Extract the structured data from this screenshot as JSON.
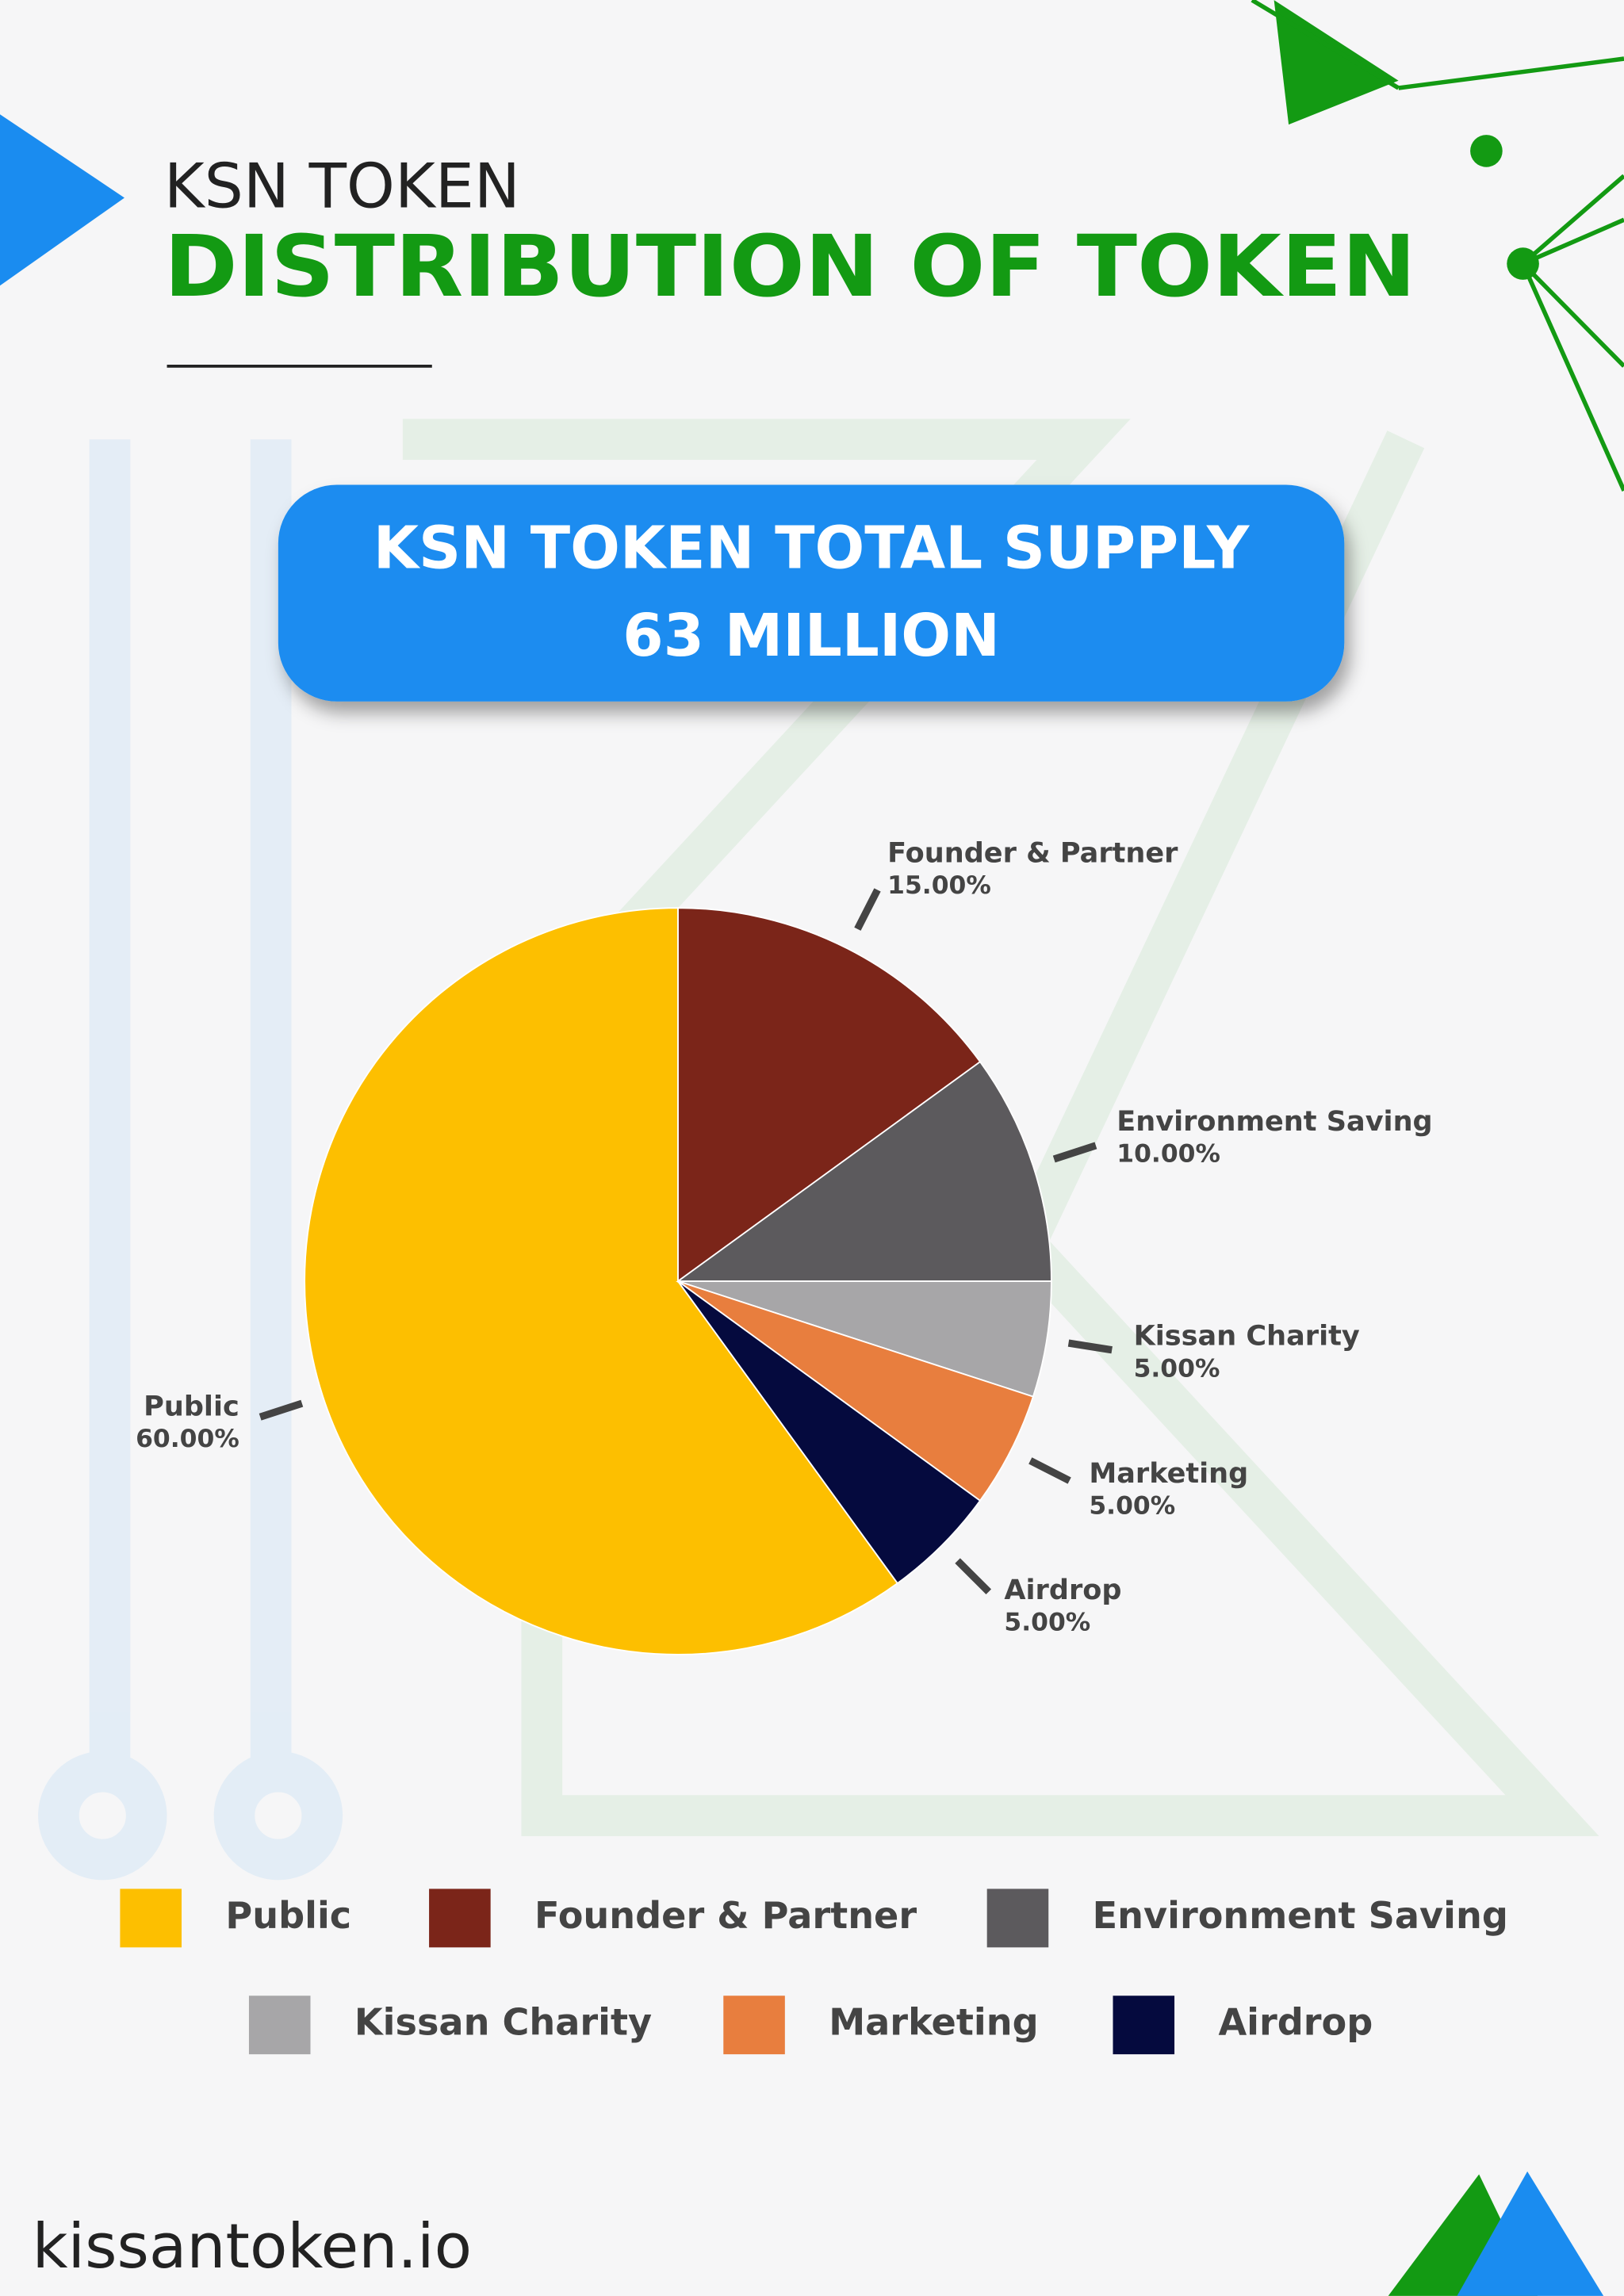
{
  "header": {
    "kicker": "KSN TOKEN",
    "title": "DISTRIBUTION OF TOKEN"
  },
  "supply": {
    "line1": "KSN TOKEN TOTAL SUPPLY",
    "line2": "63 MILLION"
  },
  "chart_data": {
    "type": "pie",
    "categories": [
      "Public",
      "Founder & Partner",
      "Environment Saving",
      "Kissan Charity",
      "Marketing",
      "Airdrop"
    ],
    "values": [
      60,
      15,
      10,
      5,
      5,
      5
    ],
    "value_labels": [
      "60.00%",
      "15.00%",
      "10.00%",
      "5.00%",
      "5.00%",
      "5.00%"
    ],
    "colors": [
      "#fdbf00",
      "#7b2519",
      "#5c5a5d",
      "#a7a6a8",
      "#e87e3e",
      "#050a3e"
    ]
  },
  "footer": {
    "url": "kissantoken.io"
  }
}
